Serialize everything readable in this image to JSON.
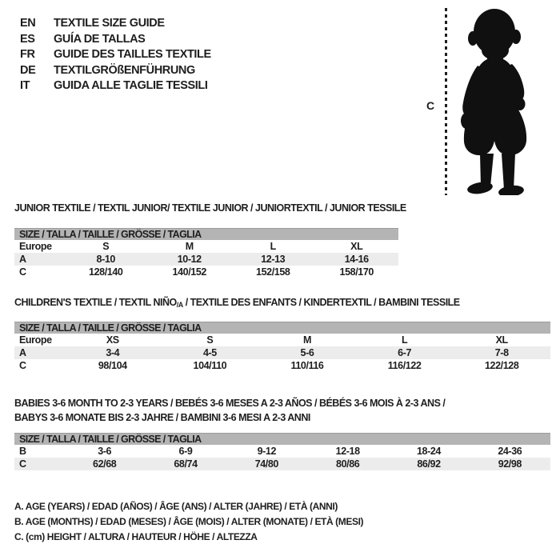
{
  "colors": {
    "background": "#ffffff",
    "text": "#1e1e1e",
    "table_header_bg": "#b4b4b4",
    "row_shaded_bg": "#ececec"
  },
  "language_guide": {
    "items": [
      {
        "code": "EN",
        "label": "TEXTILE SIZE GUIDE"
      },
      {
        "code": "ES",
        "label": "GUÍA DE TALLAS"
      },
      {
        "code": "FR",
        "label": "GUIDE DES TAILLES TEXTILE"
      },
      {
        "code": "DE",
        "label": "TEXTILGRÖßENFÜHRUNG"
      },
      {
        "code": "IT",
        "label": "GUIDA ALLE TAGLIE TESSILI"
      }
    ]
  },
  "figure": {
    "icon": "toddler-silhouette",
    "measure_label": "C"
  },
  "sections": {
    "junior": {
      "title": "JUNIOR TEXTILE / TEXTIL JUNIOR/ TEXTILE JUNIOR / JUNIORTEXTIL / JUNIOR TESSILE",
      "table": {
        "header": "SIZE / TALLA / TAILLE / GRÖSSE / TAGLIA",
        "rows": [
          {
            "label": "Europe",
            "values": [
              "S",
              "M",
              "L",
              "XL"
            ],
            "shaded": false
          },
          {
            "label": "A",
            "values": [
              "8-10",
              "10-12",
              "12-13",
              "14-16"
            ],
            "shaded": true
          },
          {
            "label": "C",
            "values": [
              "128/140",
              "140/152",
              "152/158",
              "158/170"
            ],
            "shaded": false
          }
        ]
      }
    },
    "children": {
      "title_parts": {
        "before": "CHILDREN'S TEXTILE / TEXTIL NIÑO",
        "sub": "/A",
        "after": " / TEXTILE DES ENFANTS / KINDERTEXTIL / BAMBINI TESSILE"
      },
      "table": {
        "header": "SIZE / TALLA / TAILLE / GRÖSSE / TAGLIA",
        "rows": [
          {
            "label": "Europe",
            "values": [
              "XS",
              "S",
              "M",
              "L",
              "XL"
            ],
            "shaded": false
          },
          {
            "label": "A",
            "values": [
              "3-4",
              "4-5",
              "5-6",
              "6-7",
              "7-8"
            ],
            "shaded": true
          },
          {
            "label": "C",
            "values": [
              "98/104",
              "104/110",
              "110/116",
              "116/122",
              "122/128"
            ],
            "shaded": false
          }
        ]
      }
    },
    "babies": {
      "title_lines": [
        "BABIES 3-6 MONTH TO 2-3 YEARS / BEBÉS 3-6 MESES A 2-3 AÑOS / BÉBÉS 3-6 MOIS À 2-3 ANS /",
        "BABYS 3-6 MONATE BIS 2-3 JAHRE / BAMBINI 3-6 MESI A 2-3 ANNI"
      ],
      "table": {
        "header": "SIZE / TALLA / TAILLE / GRÖSSE / TAGLIA",
        "rows": [
          {
            "label": "B",
            "values": [
              "3-6",
              "6-9",
              "9-12",
              "12-18",
              "18-24",
              "24-36"
            ],
            "shaded": false
          },
          {
            "label": "C",
            "values": [
              "62/68",
              "68/74",
              "74/80",
              "80/86",
              "86/92",
              "92/98"
            ],
            "shaded": true
          }
        ]
      }
    }
  },
  "footnotes": [
    "A. AGE (YEARS) / EDAD (AÑOS) / ÂGE (ANS) / ALTER (JAHRE) / ETÀ (ANNI)",
    "B. AGE (MONTHS) / EDAD (MESES) / ÂGE (MOIS) / ALTER (MONATE) / ETÀ (MESI)",
    "C. (cm) HEIGHT / ALTURA / HAUTEUR / HÖHE / ALTEZZA"
  ]
}
